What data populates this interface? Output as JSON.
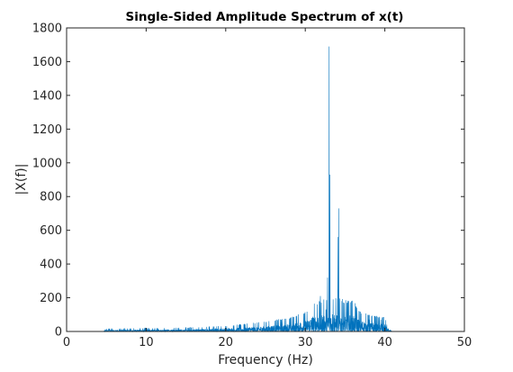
{
  "chart_data": {
    "type": "line",
    "title": "Single-Sided Amplitude Spectrum of x(t)",
    "xlabel": "Frequency (Hz)",
    "ylabel": "|X(f)|",
    "xlim": [
      0,
      50
    ],
    "ylim": [
      0,
      1800
    ],
    "xticks": [
      0,
      10,
      20,
      30,
      40,
      50
    ],
    "yticks": [
      0,
      200,
      400,
      600,
      800,
      1000,
      1200,
      1400,
      1600,
      1800
    ],
    "grid": false,
    "series_color": "#0072BD",
    "peaks": [
      {
        "x": 31.5,
        "y": 160
      },
      {
        "x": 31.9,
        "y": 210
      },
      {
        "x": 32.6,
        "y": 130
      },
      {
        "x": 32.8,
        "y": 320
      },
      {
        "x": 33.0,
        "y": 1690
      },
      {
        "x": 33.1,
        "y": 930
      },
      {
        "x": 33.5,
        "y": 190
      },
      {
        "x": 34.1,
        "y": 560
      },
      {
        "x": 34.2,
        "y": 730
      },
      {
        "x": 34.6,
        "y": 180
      },
      {
        "x": 35.5,
        "y": 160
      },
      {
        "x": 35.8,
        "y": 180
      },
      {
        "x": 36.4,
        "y": 110
      },
      {
        "x": 38.0,
        "y": 70
      },
      {
        "x": 39.5,
        "y": 70
      }
    ],
    "noise_envelope": [
      {
        "x": 0,
        "y": 0
      },
      {
        "x": 4.5,
        "y": 0
      },
      {
        "x": 5,
        "y": 10
      },
      {
        "x": 10,
        "y": 12
      },
      {
        "x": 15,
        "y": 14
      },
      {
        "x": 20,
        "y": 20
      },
      {
        "x": 25,
        "y": 35
      },
      {
        "x": 28,
        "y": 50
      },
      {
        "x": 30,
        "y": 70
      },
      {
        "x": 31,
        "y": 100
      },
      {
        "x": 32,
        "y": 110
      },
      {
        "x": 33,
        "y": 120
      },
      {
        "x": 34,
        "y": 120
      },
      {
        "x": 35,
        "y": 110
      },
      {
        "x": 36,
        "y": 110
      },
      {
        "x": 37,
        "y": 70
      },
      {
        "x": 38,
        "y": 60
      },
      {
        "x": 39,
        "y": 55
      },
      {
        "x": 40,
        "y": 50
      },
      {
        "x": 40.4,
        "y": 10
      },
      {
        "x": 41,
        "y": 0
      },
      {
        "x": 50,
        "y": 0
      }
    ]
  }
}
